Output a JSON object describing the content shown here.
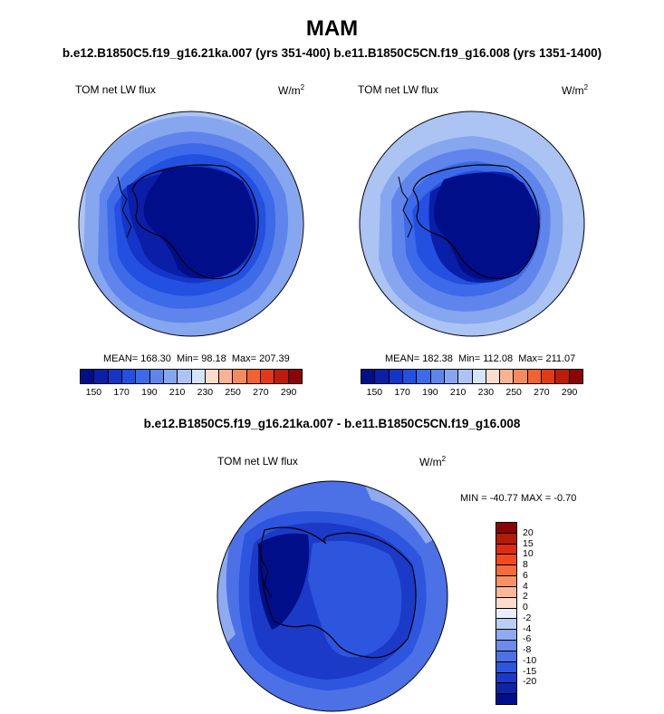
{
  "title": "MAM",
  "subtitle": "b.e12.B1850C5.f19_g16.21ka.007 (yrs 351-400) b.e11.B1850C5CN.f19_g16.008 (yrs 1351-1400)",
  "diff_title": "b.e12.B1850C5.f19_g16.21ka.007 - b.e11.B1850C5CN.f19_g16.008",
  "panels": [
    {
      "variable": "TOM net LW flux",
      "units": "W/m",
      "units_sup": "2",
      "mean_label": "MEAN= 168.30",
      "min_label": "Min=  98.18",
      "max_label": "Max= 207.39"
    },
    {
      "variable": "TOM net LW flux",
      "units": "W/m",
      "units_sup": "2",
      "mean_label": "MEAN= 182.38",
      "min_label": "Min= 112.08",
      "max_label": "Max= 211.07"
    }
  ],
  "diff_panel": {
    "variable": "TOM net LW flux",
    "units": "W/m",
    "units_sup": "2",
    "minmax_label": "MIN = -40.77  MAX =  -0.70"
  },
  "colorbar_top": {
    "colors": [
      "#000e8a",
      "#0a1ea8",
      "#1535c8",
      "#2350e0",
      "#3d6ae8",
      "#5f85ec",
      "#86a6f0",
      "#abc4f4",
      "#d6e4fa",
      "#fbdccd",
      "#f8b394",
      "#f58a60",
      "#f26232",
      "#e23a17",
      "#bd1c0a",
      "#8c0505"
    ],
    "tick_labels": [
      "150",
      "170",
      "190",
      "210",
      "230",
      "250",
      "270",
      "290"
    ]
  },
  "colorbar_diff": {
    "colors_top_to_bottom": [
      "#8c0505",
      "#b51a0a",
      "#de2c12",
      "#f24a1c",
      "#f56c3c",
      "#f79266",
      "#f9b89a",
      "#fbdccd",
      "#e8eefc",
      "#b9cdf5",
      "#8eaaf0",
      "#6b8cea",
      "#4c70e6",
      "#2e55de",
      "#1b3ac8",
      "#0e24a6",
      "#000e8a"
    ],
    "tick_labels_top_to_bottom": [
      "20",
      "15",
      "10",
      "8",
      "6",
      "4",
      "2",
      "0",
      "-2",
      "-4",
      "-6",
      "-8",
      "-10",
      "-15",
      "-20"
    ]
  }
}
